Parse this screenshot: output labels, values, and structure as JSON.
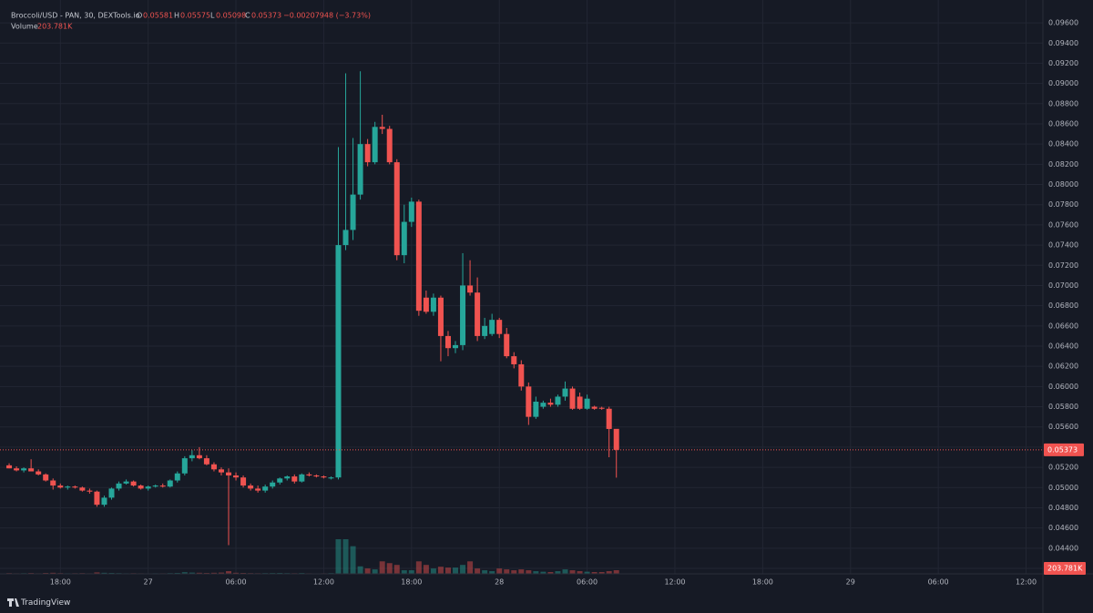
{
  "chart_data": {
    "type": "candlestick",
    "title": "Broccoli/USD - PAN, 30, DEXTools.io",
    "ohlc_labels": [
      "O",
      "H",
      "L",
      "C"
    ],
    "change": "−0.00207948 (−3.73%)",
    "volume_label": "Volume",
    "volume_value_label": "203.781K",
    "branding": "TradingView",
    "up_color": "#26a69a",
    "down_color": "#f05350",
    "grid": true,
    "open": [
      0.0522,
      0.0519,
      0.0517,
      0.0519,
      0.0516,
      0.0513,
      0.0507,
      0.0502,
      0.05,
      0.0501,
      0.05,
      0.0497,
      0.0496,
      0.0483,
      0.049,
      0.0499,
      0.0504,
      0.0506,
      0.0502,
      0.0499,
      0.0501,
      0.0502,
      0.0501,
      0.0507,
      0.0514,
      0.0529,
      0.0532,
      0.0529,
      0.0523,
      0.0518,
      0.0515,
      0.0512,
      0.051,
      0.0502,
      0.0499,
      0.0497,
      0.0501,
      0.0505,
      0.0509,
      0.0511,
      0.0506,
      0.0513,
      0.0512,
      0.0511,
      0.0509,
      0.051,
      0.074,
      0.0755,
      0.079,
      0.084,
      0.0822,
      0.0857,
      0.0855,
      0.0822,
      0.073,
      0.0763,
      0.0783,
      0.0688,
      0.0674,
      0.0688,
      0.065,
      0.0638,
      0.0641,
      0.07,
      0.0693,
      0.065,
      0.0652,
      0.0666,
      0.0652,
      0.063,
      0.0622,
      0.06,
      0.057,
      0.058,
      0.0584,
      0.0582,
      0.059,
      0.0598,
      0.059,
      0.0578,
      0.058,
      0.0579,
      0.0578,
      0.05581
    ],
    "high": [
      0.0524,
      0.0521,
      0.052,
      0.0528,
      0.0518,
      0.0514,
      0.0509,
      0.0504,
      0.0502,
      0.0502,
      0.0501,
      0.0499,
      0.0497,
      0.0492,
      0.05,
      0.0506,
      0.0508,
      0.0507,
      0.0503,
      0.0502,
      0.0503,
      0.0504,
      0.0508,
      0.0516,
      0.0531,
      0.0537,
      0.054,
      0.0532,
      0.0525,
      0.052,
      0.0519,
      0.0515,
      0.0512,
      0.0504,
      0.0502,
      0.0503,
      0.0507,
      0.051,
      0.0512,
      0.0513,
      0.0514,
      0.0515,
      0.0513,
      0.0512,
      0.0511,
      0.0837,
      0.091,
      0.0846,
      0.0912,
      0.0845,
      0.0862,
      0.0869,
      0.0858,
      0.0825,
      0.078,
      0.0787,
      0.0785,
      0.0695,
      0.0692,
      0.069,
      0.0655,
      0.0645,
      0.0732,
      0.0725,
      0.0708,
      0.0668,
      0.0672,
      0.0668,
      0.0658,
      0.0634,
      0.0626,
      0.0604,
      0.059,
      0.0586,
      0.0588,
      0.0592,
      0.0605,
      0.06,
      0.0594,
      0.0592,
      0.0581,
      0.058,
      0.058,
      0.05575
    ],
    "low": [
      0.0519,
      0.0516,
      0.0515,
      0.0516,
      0.0512,
      0.0506,
      0.0498,
      0.0499,
      0.0498,
      0.0499,
      0.0496,
      0.0494,
      0.0481,
      0.0481,
      0.0488,
      0.0497,
      0.0503,
      0.0501,
      0.0498,
      0.0497,
      0.05,
      0.05,
      0.05,
      0.0505,
      0.0512,
      0.0526,
      0.0528,
      0.0522,
      0.0516,
      0.0512,
      0.0443,
      0.0507,
      0.05,
      0.0497,
      0.0495,
      0.0495,
      0.0499,
      0.0503,
      0.0507,
      0.0504,
      0.0505,
      0.0511,
      0.051,
      0.0509,
      0.0508,
      0.0508,
      0.0735,
      0.0745,
      0.0785,
      0.0818,
      0.082,
      0.085,
      0.082,
      0.0725,
      0.0722,
      0.0758,
      0.067,
      0.0672,
      0.067,
      0.0625,
      0.063,
      0.0633,
      0.0636,
      0.069,
      0.0645,
      0.0647,
      0.065,
      0.0648,
      0.0628,
      0.0618,
      0.0596,
      0.0562,
      0.0568,
      0.0578,
      0.058,
      0.058,
      0.0586,
      0.0577,
      0.0577,
      0.0577,
      0.0577,
      0.0577,
      0.053,
      0.05098
    ],
    "close": [
      0.0519,
      0.0517,
      0.0519,
      0.0516,
      0.0513,
      0.0507,
      0.0502,
      0.05,
      0.0501,
      0.05,
      0.0497,
      0.0496,
      0.0483,
      0.049,
      0.0499,
      0.0504,
      0.0506,
      0.0502,
      0.0499,
      0.0501,
      0.0502,
      0.0501,
      0.0507,
      0.0514,
      0.0529,
      0.0532,
      0.0529,
      0.0523,
      0.0518,
      0.0515,
      0.0512,
      0.051,
      0.0502,
      0.0499,
      0.0497,
      0.0501,
      0.0505,
      0.0509,
      0.0511,
      0.0506,
      0.0513,
      0.0512,
      0.0511,
      0.051,
      0.051,
      0.074,
      0.0755,
      0.079,
      0.084,
      0.0822,
      0.0857,
      0.0855,
      0.0822,
      0.073,
      0.0763,
      0.0783,
      0.0675,
      0.0674,
      0.0688,
      0.065,
      0.0638,
      0.0641,
      0.07,
      0.0693,
      0.065,
      0.066,
      0.0666,
      0.0652,
      0.063,
      0.0622,
      0.06,
      0.057,
      0.0585,
      0.0584,
      0.0582,
      0.059,
      0.0598,
      0.0578,
      0.0578,
      0.0588,
      0.0578,
      0.0578,
      0.0558,
      0.05373
    ],
    "volume": [
      40000,
      30000,
      35000,
      45000,
      30000,
      50000,
      60000,
      40000,
      30000,
      35000,
      40000,
      30000,
      80000,
      60000,
      50000,
      40000,
      30000,
      35000,
      30000,
      25000,
      30000,
      30000,
      40000,
      50000,
      90000,
      70000,
      60000,
      50000,
      60000,
      70000,
      150000,
      60000,
      50000,
      40000,
      35000,
      40000,
      45000,
      50000,
      40000,
      35000,
      45000,
      30000,
      25000,
      30000,
      40000,
      1940000,
      1940000,
      1550000,
      420000,
      300000,
      250000,
      700000,
      600000,
      500000,
      200000,
      200000,
      700000,
      500000,
      300000,
      400000,
      350000,
      350000,
      500000,
      700000,
      300000,
      200000,
      150000,
      300000,
      250000,
      200000,
      250000,
      200000,
      150000,
      120000,
      100000,
      150000,
      250000,
      200000,
      150000,
      120000,
      100000,
      100000,
      150000,
      203781
    ],
    "ylim": [
      0.04146,
      0.09826
    ],
    "yticks": [
      {
        "value": 0.096,
        "label": "0.09600"
      },
      {
        "value": 0.094,
        "label": "0.09400"
      },
      {
        "value": 0.092,
        "label": "0.09200"
      },
      {
        "value": 0.09,
        "label": "0.09000"
      },
      {
        "value": 0.088,
        "label": "0.08800"
      },
      {
        "value": 0.086,
        "label": "0.08600"
      },
      {
        "value": 0.084,
        "label": "0.08400"
      },
      {
        "value": 0.082,
        "label": "0.08200"
      },
      {
        "value": 0.08,
        "label": "0.08000"
      },
      {
        "value": 0.078,
        "label": "0.07800"
      },
      {
        "value": 0.076,
        "label": "0.07600"
      },
      {
        "value": 0.074,
        "label": "0.07400"
      },
      {
        "value": 0.072,
        "label": "0.07200"
      },
      {
        "value": 0.07,
        "label": "0.07000"
      },
      {
        "value": 0.068,
        "label": "0.06800"
      },
      {
        "value": 0.066,
        "label": "0.06600"
      },
      {
        "value": 0.064,
        "label": "0.06400"
      },
      {
        "value": 0.062,
        "label": "0.06200"
      },
      {
        "value": 0.06,
        "label": "0.06000"
      },
      {
        "value": 0.058,
        "label": "0.05800"
      },
      {
        "value": 0.056,
        "label": "0.05600"
      },
      {
        "value": 0.054,
        "label": "0.05400"
      },
      {
        "value": 0.052,
        "label": "0.05200"
      },
      {
        "value": 0.05,
        "label": "0.05000"
      },
      {
        "value": 0.048,
        "label": "0.04800"
      },
      {
        "value": 0.046,
        "label": "0.04600"
      },
      {
        "value": 0.044,
        "label": "0.04400"
      },
      {
        "value": 0.042,
        "label": "0.04200"
      }
    ],
    "xlim": [
      -1.25,
      141.3
    ],
    "xticks": [
      {
        "value": 7,
        "label": "18:00"
      },
      {
        "value": 19,
        "label": "27"
      },
      {
        "value": 31,
        "label": "06:00"
      },
      {
        "value": 43,
        "label": "12:00"
      },
      {
        "value": 55,
        "label": "18:00"
      },
      {
        "value": 67,
        "label": "28"
      },
      {
        "value": 79,
        "label": "06:00"
      },
      {
        "value": 91,
        "label": "12:00"
      },
      {
        "value": 103,
        "label": "18:00"
      },
      {
        "value": 115,
        "label": "29"
      },
      {
        "value": 127,
        "label": "06:00"
      },
      {
        "value": 139,
        "label": "12:00"
      }
    ]
  }
}
